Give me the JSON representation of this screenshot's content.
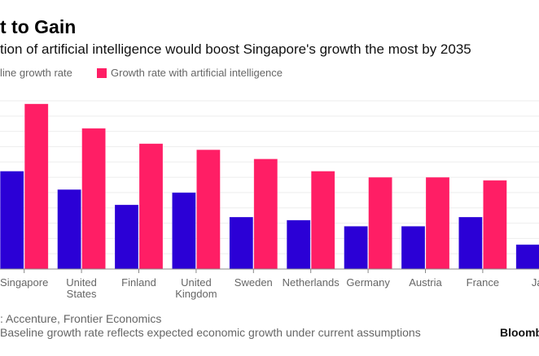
{
  "title": "t to Gain",
  "subtitle": "tion of artificial intelligence would boost Singapore's growth the most by 2035",
  "colors": {
    "baseline": "#2b00d6",
    "ai": "#ff1e65",
    "grid": "#eeeeee",
    "axis": "#888888"
  },
  "legend": [
    {
      "label": "line growth rate",
      "color": "#2b00d6"
    },
    {
      "label": "Growth rate with artificial intelligence",
      "color": "#ff1e65"
    }
  ],
  "chart_data": {
    "type": "bar",
    "categories": [
      "Singapore",
      "United States",
      "Finland",
      "United Kingdom",
      "Sweden",
      "Netherlands",
      "Germany",
      "Austria",
      "France",
      "Japan"
    ],
    "category_labels": [
      [
        "Singapore"
      ],
      [
        "United",
        "States"
      ],
      [
        "Finland"
      ],
      [
        "United",
        "Kingdom"
      ],
      [
        "Sweden"
      ],
      [
        "Netherlands"
      ],
      [
        "Germany"
      ],
      [
        "Austria"
      ],
      [
        "France"
      ],
      [
        "Jap"
      ]
    ],
    "series": [
      {
        "name": "Baseline growth rate",
        "values": [
          3.2,
          2.6,
          2.1,
          2.5,
          1.7,
          1.6,
          1.4,
          1.4,
          1.7,
          0.8
        ]
      },
      {
        "name": "Growth rate with artificial intelligence",
        "values": [
          5.4,
          4.6,
          4.1,
          3.9,
          3.6,
          3.2,
          3.0,
          3.0,
          2.9,
          0
        ]
      }
    ],
    "ylim": [
      0,
      5.5
    ],
    "grid_step": 0.5,
    "grid": true,
    "legend_position": "top-left"
  },
  "source": ": Accenture, Frontier Economics",
  "note": "Baseline growth rate reflects expected economic growth under current assumptions",
  "logo": "Bloomb"
}
